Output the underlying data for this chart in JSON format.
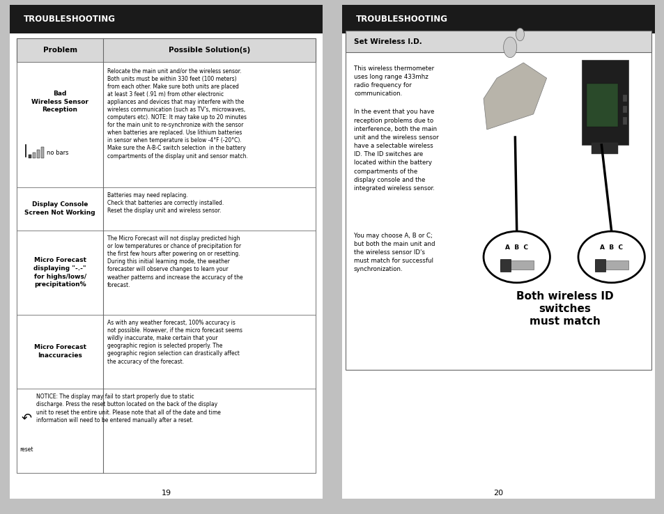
{
  "bg_color": "#ffffff",
  "header_bg": "#1a1a1a",
  "header_text_color": "#ffffff",
  "header_text": "TROUBLESHOOTING",
  "table_border_color": "#666666",
  "table_header_bg": "#d8d8d8",
  "page_bg": "#c0c0c0",
  "left_page_num": "19",
  "right_page_num": "20",
  "left_section": {
    "table_rows": [
      {
        "problem": "Bad\nWireless Sensor\nReception",
        "solution": "Relocate the main unit and/or the wireless sensor.\nBoth units must be within 330 feet (100 meters)\nfrom each other. Make sure both units are placed\nat least 3 feet (.91 m) from other electronic\nappliances and devices that may interfere with the\nwireless communication (such as TV's, microwaves,\ncomputers etc). NOTE: It may take up to 20 minutes\nfor the main unit to re-synchronize with the sensor\nwhen batteries are replaced. Use lithium batteries\nin sensor when temperature is below -4°F (-20°C).\nMake sure the A-B-C switch selection  in the battery\ncompartments of the display unit and sensor match.",
        "has_icon": true,
        "icon_text": "no bars"
      },
      {
        "problem": "Display Console\nScreen Not Working",
        "solution": "Batteries may need replacing.\nCheck that batteries are correctly installed.\nReset the display unit and wireless sensor.",
        "has_icon": false
      },
      {
        "problem": "Micro Forecast\ndisplaying \"-.-\"\nfor highs/lows/\nprecipitation%",
        "solution": "The Micro Forecast will not display predicted high\nor low temperatures or chance of precipitation for\nthe first few hours after powering on or resetting.\nDuring this initial learning mode, the weather\nforecaster will observe changes to learn your\nweather patterns and increase the accuracy of the\nforecast.",
        "has_icon": false
      },
      {
        "problem": "Micro Forecast\nInaccuracies",
        "solution": "As with any weather forecast, 100% accuracy is\nnot possible. However, if the micro forecast seems\nwildly inaccurate, make certain that your\ngeographic region is selected properly. The\ngeographic region selection can drastically affect\nthe accuracy of the forecast.",
        "has_icon": false
      }
    ],
    "notice_text": "NOTICE: The display may fail to start properly due to static\ndischarge. Press the reset button located on the back of the display\nunit to reset the entire unit. Please note that all of the date and time\ninformation will need to be entered manually after a reset."
  },
  "right_section": {
    "box_title": "Set Wireless I.D.",
    "para1": "This wireless thermometer\nuses long range 433mhz\nradio frequency for\ncommunication.",
    "para2": "In the event that you have\nreception problems due to\ninterference, both the main\nunit and the wireless sensor\nhave a selectable wireless\nID. The ID switches are\nlocated within the battery\ncompartments of the\ndisplay console and the\nintegrated wireless sensor.",
    "para3": "You may choose A, B or C;\nbut both the main unit and\nthe wireless sensor ID's\nmust match for successful\nsynchronization.",
    "bold_text": "Both wireless ID\nswitches\nmust match"
  }
}
